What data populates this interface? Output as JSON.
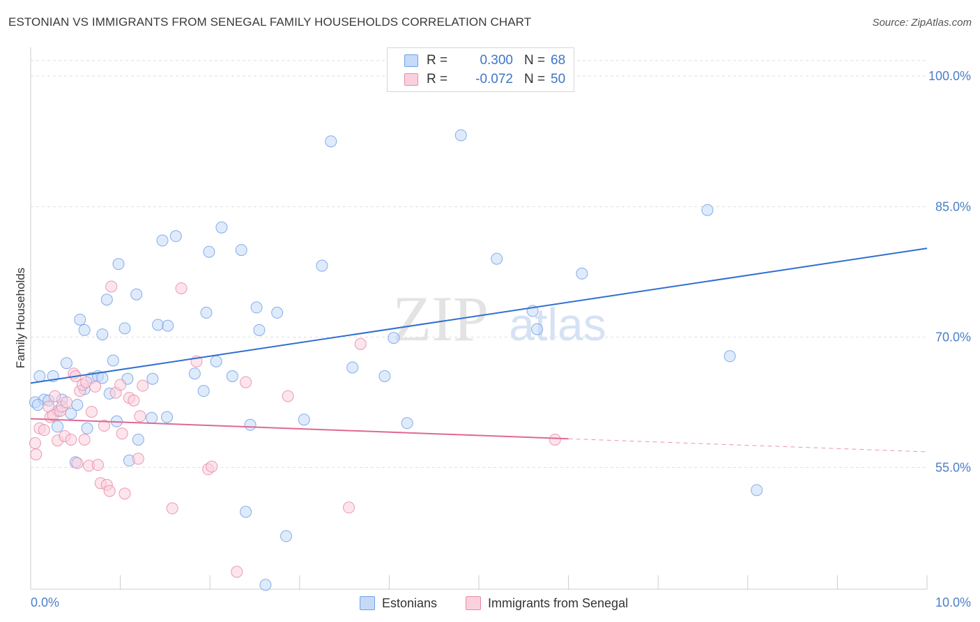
{
  "title": "ESTONIAN VS IMMIGRANTS FROM SENEGAL FAMILY HOUSEHOLDS CORRELATION CHART",
  "source": "Source: ZipAtlas.com",
  "watermark": {
    "zip": "ZIP",
    "atlas": "atlas"
  },
  "legend": {
    "rows": [
      {
        "r_label": "R =",
        "r_value": "0.300",
        "n_label": "N =",
        "n_value": "68",
        "color": "#6fa0e6",
        "fill": "#c5daf7"
      },
      {
        "r_label": "R =",
        "r_value": "-0.072",
        "n_label": "N =",
        "n_value": "50",
        "color": "#e88aa8",
        "fill": "#fbd0dd"
      }
    ]
  },
  "bottom_legend": {
    "estonians": "Estonians",
    "senegal": "Immigrants from Senegal"
  },
  "chart_data": {
    "type": "scatter",
    "title": "ESTONIAN VS IMMIGRANTS FROM SENEGAL FAMILY HOUSEHOLDS CORRELATION CHART",
    "xlabel": "",
    "ylabel": "Family Households",
    "xlim": [
      0,
      10
    ],
    "ylim": [
      41,
      102.5
    ],
    "x_tick_labels": [
      "0.0%",
      "10.0%"
    ],
    "y_ticks": [
      55,
      70,
      85,
      100
    ],
    "y_tick_labels": [
      "55.0%",
      "70.0%",
      "85.0%",
      "100.0%"
    ],
    "grid": true,
    "series": [
      {
        "name": "Estonians",
        "color": "#6fa0e6",
        "fill": "#c5daf7",
        "trend": {
          "x": [
            0,
            10
          ],
          "y": [
            64.7,
            80.2
          ],
          "color": "#2f6fd0"
        },
        "points": [
          [
            0.05,
            62.5
          ],
          [
            0.1,
            65.5
          ],
          [
            0.15,
            62.8
          ],
          [
            0.2,
            62.7
          ],
          [
            0.25,
            65.5
          ],
          [
            0.3,
            61.5
          ],
          [
            0.35,
            62.8
          ],
          [
            0.4,
            67.0
          ],
          [
            0.45,
            61.2
          ],
          [
            0.5,
            55.6
          ],
          [
            0.52,
            62.2
          ],
          [
            0.55,
            72.0
          ],
          [
            0.6,
            70.8
          ],
          [
            0.63,
            59.5
          ],
          [
            0.68,
            65.3
          ],
          [
            0.75,
            65.5
          ],
          [
            0.8,
            65.3
          ],
          [
            0.8,
            70.3
          ],
          [
            0.85,
            74.3
          ],
          [
            0.88,
            63.5
          ],
          [
            0.92,
            67.3
          ],
          [
            0.96,
            60.3
          ],
          [
            0.98,
            78.4
          ],
          [
            1.05,
            71.0
          ],
          [
            1.08,
            65.2
          ],
          [
            1.1,
            55.8
          ],
          [
            1.18,
            74.9
          ],
          [
            1.2,
            58.2
          ],
          [
            1.35,
            60.7
          ],
          [
            1.36,
            65.2
          ],
          [
            1.42,
            71.4
          ],
          [
            1.47,
            81.1
          ],
          [
            1.52,
            60.8
          ],
          [
            1.53,
            71.3
          ],
          [
            1.62,
            81.6
          ],
          [
            1.83,
            65.8
          ],
          [
            1.93,
            63.8
          ],
          [
            1.96,
            72.8
          ],
          [
            1.99,
            79.8
          ],
          [
            2.07,
            67.2
          ],
          [
            2.13,
            82.6
          ],
          [
            2.25,
            65.5
          ],
          [
            2.35,
            80.0
          ],
          [
            2.4,
            49.9
          ],
          [
            2.45,
            59.9
          ],
          [
            2.52,
            73.4
          ],
          [
            2.55,
            70.8
          ],
          [
            2.62,
            41.5
          ],
          [
            2.75,
            72.8
          ],
          [
            2.85,
            47.1
          ],
          [
            3.05,
            60.5
          ],
          [
            3.25,
            78.2
          ],
          [
            3.35,
            92.5
          ],
          [
            3.59,
            66.5
          ],
          [
            3.95,
            65.5
          ],
          [
            4.05,
            69.9
          ],
          [
            4.2,
            60.1
          ],
          [
            4.8,
            93.2
          ],
          [
            5.2,
            79.0
          ],
          [
            5.6,
            73.0
          ],
          [
            5.65,
            70.9
          ],
          [
            6.15,
            77.3
          ],
          [
            7.55,
            84.6
          ],
          [
            7.8,
            67.8
          ],
          [
            8.1,
            52.4
          ],
          [
            0.08,
            62.2
          ],
          [
            0.3,
            59.7
          ],
          [
            0.6,
            64.0
          ]
        ]
      },
      {
        "name": "Immigrants from Senegal",
        "color": "#e88aa8",
        "fill": "#fbd0dd",
        "trend": {
          "x": [
            0,
            6.0
          ],
          "y": [
            60.6,
            58.3
          ],
          "dash_x": [
            6.0,
            10
          ],
          "dash_y": [
            58.3,
            56.8
          ],
          "color": "#e06894"
        },
        "points": [
          [
            0.05,
            57.8
          ],
          [
            0.06,
            56.5
          ],
          [
            0.1,
            59.5
          ],
          [
            0.15,
            59.3
          ],
          [
            0.2,
            62.0
          ],
          [
            0.22,
            60.8
          ],
          [
            0.25,
            61.0
          ],
          [
            0.27,
            63.2
          ],
          [
            0.3,
            58.1
          ],
          [
            0.33,
            61.5
          ],
          [
            0.35,
            62.0
          ],
          [
            0.38,
            58.6
          ],
          [
            0.4,
            62.5
          ],
          [
            0.45,
            58.2
          ],
          [
            0.48,
            65.8
          ],
          [
            0.5,
            65.5
          ],
          [
            0.52,
            55.5
          ],
          [
            0.55,
            63.8
          ],
          [
            0.58,
            64.5
          ],
          [
            0.6,
            58.2
          ],
          [
            0.62,
            64.8
          ],
          [
            0.65,
            55.2
          ],
          [
            0.68,
            61.4
          ],
          [
            0.72,
            64.3
          ],
          [
            0.75,
            55.3
          ],
          [
            0.78,
            53.2
          ],
          [
            0.82,
            59.8
          ],
          [
            0.85,
            53.0
          ],
          [
            0.88,
            52.3
          ],
          [
            0.9,
            75.8
          ],
          [
            0.95,
            63.6
          ],
          [
            1.0,
            64.5
          ],
          [
            1.02,
            58.9
          ],
          [
            1.05,
            52.0
          ],
          [
            1.1,
            63.0
          ],
          [
            1.15,
            62.7
          ],
          [
            1.2,
            56.0
          ],
          [
            1.22,
            60.9
          ],
          [
            1.25,
            64.4
          ],
          [
            1.58,
            50.3
          ],
          [
            1.68,
            75.6
          ],
          [
            1.85,
            67.2
          ],
          [
            1.98,
            54.8
          ],
          [
            2.02,
            55.1
          ],
          [
            2.3,
            43.0
          ],
          [
            2.4,
            64.8
          ],
          [
            2.87,
            63.2
          ],
          [
            3.55,
            50.4
          ],
          [
            3.68,
            69.2
          ],
          [
            5.85,
            58.2
          ]
        ]
      }
    ]
  }
}
